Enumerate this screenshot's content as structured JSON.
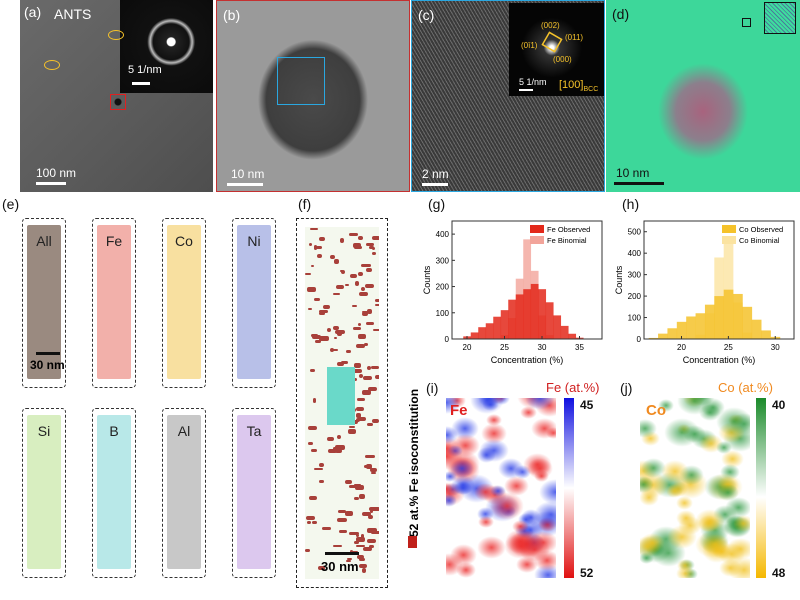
{
  "panels": {
    "a": {
      "label": "(a)",
      "title": "ANTS",
      "inset_scale": "5 1/nm",
      "scale": "100 nm"
    },
    "b": {
      "label": "(b)",
      "scale": "10 nm"
    },
    "c": {
      "label": "(c)",
      "scale": "2 nm",
      "inset_scale": "5 1/nm",
      "zone_axis": "[100]",
      "zone_sub": "BCC",
      "spots": [
        "(002)",
        "(011)",
        "(0ī1)",
        "(000)"
      ]
    },
    "d": {
      "label": "(d)",
      "scale": "10 nm"
    },
    "e": {
      "label": "(e)",
      "elements": [
        "All",
        "Fe",
        "Co",
        "Ni",
        "Si",
        "B",
        "Al",
        "Ta"
      ],
      "scale": "30 nm"
    },
    "f": {
      "label": "(f)",
      "iso_label": "52 at.% Fe isoconstitution",
      "scale": "30 nm"
    },
    "i": {
      "label": "(i)",
      "element": "Fe",
      "legend_title": "Fe (at.%)",
      "max": "45",
      "min": "52"
    },
    "j": {
      "label": "(j)",
      "element": "Co",
      "legend_title": "Co (at.%)",
      "max": "40",
      "min": "48"
    }
  },
  "colors": {
    "fe": "#e3281a",
    "fe_binom": "#f2a49a",
    "co": "#f5c22a",
    "co_binom": "#fbe3a0",
    "apt_bg": "#58e0a4"
  },
  "chart_data": [
    {
      "panel": "(g)",
      "type": "bar",
      "xlabel": "Concentration (%)",
      "ylabel": "Counts",
      "xlim": [
        18,
        38
      ],
      "ylim": [
        0,
        450
      ],
      "xticks": [
        20,
        25,
        30,
        35
      ],
      "yticks": [
        0,
        100,
        200,
        300,
        400
      ],
      "legend": "top-right",
      "series": [
        {
          "name": "Fe Observed",
          "x": [
            19,
            20,
            21,
            22,
            23,
            24,
            25,
            26,
            27,
            28,
            29,
            30,
            31,
            32,
            33,
            34,
            35
          ],
          "values": [
            2,
            10,
            25,
            45,
            60,
            85,
            110,
            150,
            170,
            190,
            210,
            190,
            140,
            90,
            50,
            20,
            5
          ]
        },
        {
          "name": "Fe Binomial",
          "x": [
            24,
            25,
            26,
            27,
            28,
            29,
            30,
            31,
            32
          ],
          "values": [
            2,
            15,
            80,
            230,
            380,
            260,
            90,
            15,
            2
          ]
        }
      ]
    },
    {
      "panel": "(h)",
      "type": "bar",
      "xlabel": "Concentration (%)",
      "ylabel": "Counts",
      "xlim": [
        16,
        32
      ],
      "ylim": [
        0,
        550
      ],
      "xticks": [
        20,
        25,
        30
      ],
      "yticks": [
        0,
        100,
        200,
        300,
        400,
        500
      ],
      "legend": "top-right",
      "series": [
        {
          "name": "Co Observed",
          "x": [
            17,
            18,
            19,
            20,
            21,
            22,
            23,
            24,
            25,
            26,
            27,
            28,
            29,
            30
          ],
          "values": [
            5,
            25,
            50,
            80,
            105,
            120,
            160,
            200,
            230,
            210,
            150,
            90,
            40,
            10
          ]
        },
        {
          "name": "Co Binomial",
          "x": [
            21,
            22,
            23,
            24,
            25,
            26,
            27,
            28
          ],
          "values": [
            2,
            20,
            120,
            380,
            450,
            170,
            30,
            3
          ]
        }
      ]
    }
  ]
}
